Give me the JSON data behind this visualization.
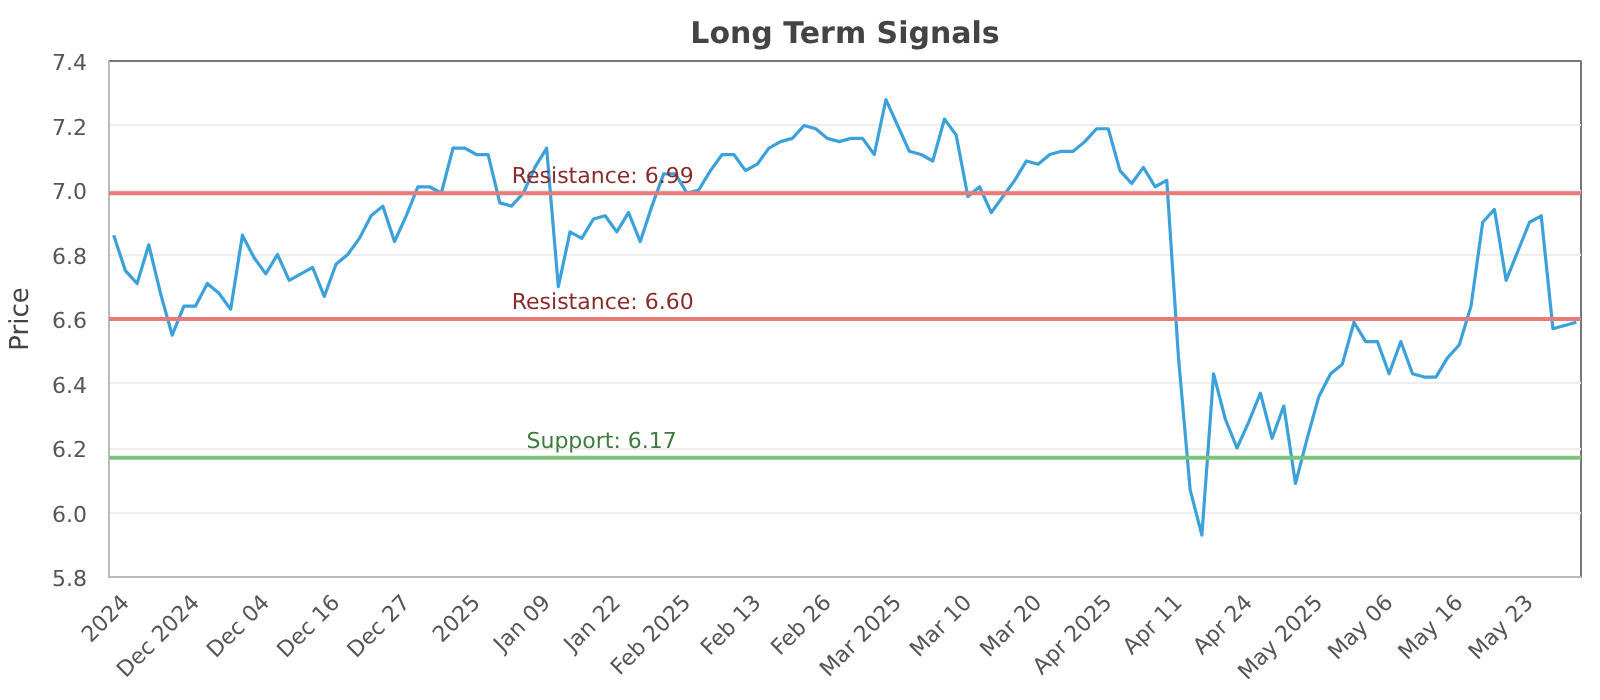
{
  "chart_data": {
    "type": "line",
    "title": "Long Term Signals",
    "ylabel": "Price",
    "categories": [
      null,
      "2024",
      null,
      null,
      null,
      null,
      null,
      "Dec 2024",
      null,
      null,
      null,
      null,
      null,
      "Dec 04",
      null,
      null,
      null,
      null,
      null,
      "Dec 16",
      null,
      null,
      null,
      null,
      null,
      "Dec 27",
      null,
      null,
      null,
      null,
      null,
      "2025",
      null,
      null,
      null,
      null,
      null,
      "Jan 09",
      null,
      null,
      null,
      null,
      null,
      "Jan 22",
      null,
      null,
      null,
      null,
      null,
      "Feb 2025",
      null,
      null,
      null,
      null,
      null,
      "Feb 13",
      null,
      null,
      null,
      null,
      null,
      "Feb 26",
      null,
      null,
      null,
      null,
      null,
      "Mar 2025",
      null,
      null,
      null,
      null,
      null,
      "Mar 10",
      null,
      null,
      null,
      null,
      null,
      "Mar 20",
      null,
      null,
      null,
      null,
      null,
      "Apr 2025",
      null,
      null,
      null,
      null,
      null,
      "Apr 11",
      null,
      null,
      null,
      null,
      null,
      "Apr 24",
      null,
      null,
      null,
      null,
      null,
      "May 2025",
      null,
      null,
      null,
      null,
      null,
      "May 06",
      null,
      null,
      null,
      null,
      null,
      "May 16",
      null,
      null,
      null,
      null,
      null,
      "May 23",
      null,
      null,
      null,
      null
    ],
    "series": [
      {
        "color": "#3ba1db",
        "values": [
          6.86,
          6.75,
          6.71,
          6.83,
          6.68,
          6.55,
          6.64,
          6.64,
          6.71,
          6.68,
          6.63,
          6.86,
          6.79,
          6.74,
          6.8,
          6.72,
          6.74,
          6.76,
          6.67,
          6.77,
          6.8,
          6.85,
          6.92,
          6.95,
          6.84,
          6.92,
          7.01,
          7.01,
          6.99,
          7.13,
          7.13,
          7.11,
          7.11,
          6.96,
          6.95,
          6.99,
          7.07,
          7.13,
          6.7,
          6.87,
          6.85,
          6.91,
          6.92,
          6.87,
          6.93,
          6.84,
          6.95,
          7.05,
          7.05,
          6.99,
          7.0,
          7.06,
          7.11,
          7.11,
          7.06,
          7.08,
          7.13,
          7.15,
          7.16,
          7.2,
          7.19,
          7.16,
          7.15,
          7.16,
          7.16,
          7.11,
          7.28,
          7.2,
          7.12,
          7.11,
          7.09,
          7.22,
          7.17,
          6.98,
          7.01,
          6.93,
          6.98,
          7.03,
          7.09,
          7.08,
          7.11,
          7.12,
          7.12,
          7.15,
          7.19,
          7.19,
          7.06,
          7.02,
          7.07,
          7.01,
          7.03,
          6.48,
          6.07,
          5.93,
          6.43,
          6.29,
          6.2,
          6.28,
          6.37,
          6.23,
          6.33,
          6.09,
          6.23,
          6.36,
          6.43,
          6.46,
          6.59,
          6.53,
          6.53,
          6.43,
          6.53,
          6.43,
          6.42,
          6.42,
          6.48,
          6.52,
          6.64,
          6.9,
          6.94,
          6.72,
          6.81,
          6.9,
          6.92,
          6.57,
          6.58,
          6.59
        ]
      }
    ],
    "ylim": [
      5.8,
      7.4
    ],
    "yticks": [
      5.8,
      {
        "value": 6.0,
        "label": "6.0"
      },
      6.2,
      6.4,
      6.6,
      6.8,
      {
        "value": 7.0,
        "label": "7.0"
      },
      7.2,
      7.4
    ],
    "ref_lines": [
      {
        "axis": "y",
        "value": 6.99,
        "label": "Resistance: 6.99",
        "color": "#e87a7a"
      },
      {
        "axis": "y",
        "value": 6.6,
        "label": "Resistance: 6.60",
        "color": "#e87a7a"
      },
      {
        "axis": "y",
        "value": 6.17,
        "label": "Support: 6.17",
        "color": "#7cc47c"
      }
    ],
    "grid": "y"
  }
}
